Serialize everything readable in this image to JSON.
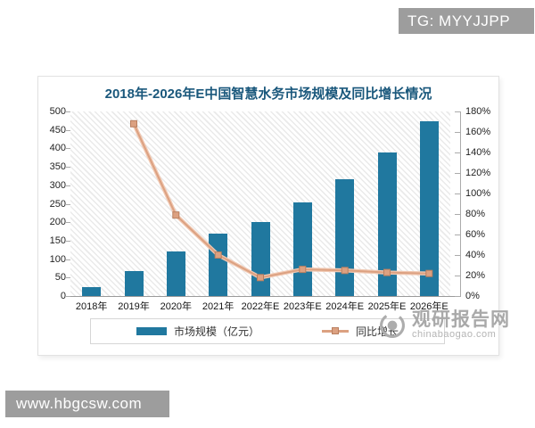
{
  "badges": {
    "top_right": "TG: MYYJJPP",
    "bottom_left": "www.hbgcsw.com"
  },
  "watermark": {
    "name": "观研报告网",
    "domain": "chinabaogao.com",
    "logo": "eye-icon"
  },
  "chart_data": {
    "type": "bar",
    "title": "2018年-2026年E中国智慧水务市场规模及同比增长情况",
    "categories": [
      "2018年",
      "2019年",
      "2020年",
      "2021年",
      "2022年E",
      "2023年E",
      "2024年E",
      "2025年E",
      "2026年E"
    ],
    "series": [
      {
        "name": "市场规模（亿元）",
        "type": "bar",
        "axis": "left",
        "color": "#20789f",
        "values": [
          25,
          67,
          122,
          170,
          200,
          253,
          316,
          388,
          474
        ]
      },
      {
        "name": "同比增长",
        "type": "line",
        "axis": "right",
        "unit": "%",
        "color": "#dca181",
        "values": [
          null,
          168,
          79,
          40,
          18,
          26,
          25,
          23,
          22
        ]
      }
    ],
    "left_axis": {
      "min": 0,
      "max": 500,
      "step": 50,
      "ticks": [
        "0",
        "50",
        "100",
        "150",
        "200",
        "250",
        "300",
        "350",
        "400",
        "450",
        "500"
      ]
    },
    "right_axis": {
      "min": 0,
      "max": 180,
      "step": 20,
      "ticks": [
        "0%",
        "20%",
        "40%",
        "60%",
        "80%",
        "100%",
        "120%",
        "140%",
        "160%",
        "180%"
      ]
    },
    "grid": "diagonal-hatch-background",
    "legend_position": "bottom-boxed"
  }
}
